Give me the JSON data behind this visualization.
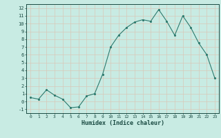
{
  "x": [
    0,
    1,
    2,
    3,
    4,
    5,
    6,
    7,
    8,
    9,
    10,
    11,
    12,
    13,
    14,
    15,
    16,
    17,
    18,
    19,
    20,
    21,
    22,
    23
  ],
  "y": [
    0.5,
    0.3,
    1.5,
    0.8,
    0.3,
    -0.8,
    -0.7,
    0.7,
    1.0,
    3.5,
    7.0,
    8.5,
    9.5,
    10.2,
    10.5,
    10.3,
    11.8,
    10.3,
    8.5,
    11.0,
    9.5,
    7.5,
    6.0,
    3.0
  ],
  "xlabel": "Humidex (Indice chaleur)",
  "ylim": [
    -1.5,
    12.5
  ],
  "xlim": [
    -0.5,
    23.5
  ],
  "yticks": [
    -1,
    0,
    1,
    2,
    3,
    4,
    5,
    6,
    7,
    8,
    9,
    10,
    11,
    12
  ],
  "xticks": [
    0,
    1,
    2,
    3,
    4,
    5,
    6,
    7,
    8,
    9,
    10,
    11,
    12,
    13,
    14,
    15,
    16,
    17,
    18,
    19,
    20,
    21,
    22,
    23
  ],
  "line_color": "#2d7a6e",
  "marker_color": "#2d7a6e",
  "bg_color": "#c8ebe3",
  "grid_color": "#d8c8b8",
  "tick_label_color": "#1a4a42",
  "xlabel_color": "#1a4a42",
  "font_family": "monospace"
}
